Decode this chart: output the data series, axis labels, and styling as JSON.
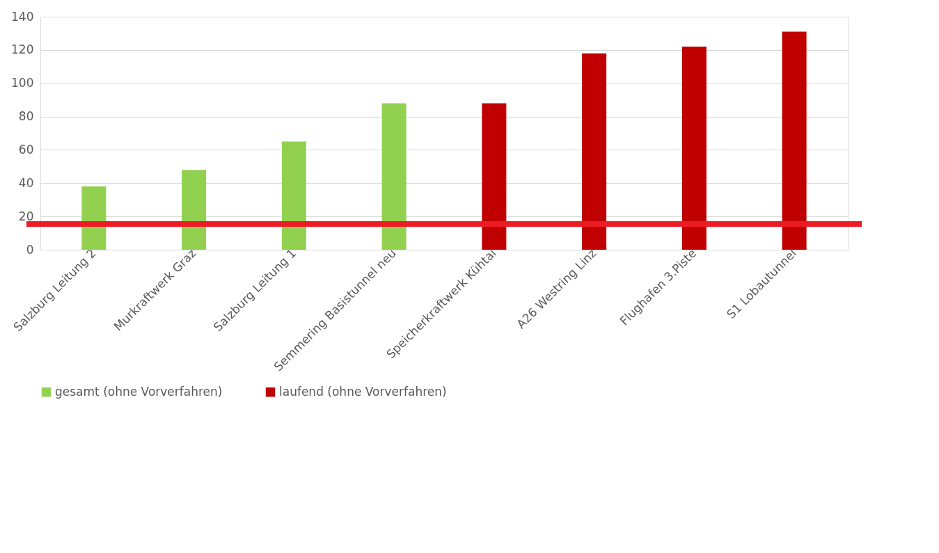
{
  "chart_data": {
    "type": "bar",
    "categories": [
      "Salzburg Leitung 2",
      "Murkraftwerk Graz",
      "Salzburg Leitung 1",
      "Semmering Basistunnel neu",
      "Speicherkraftwerk Kühtai",
      "A26 Westring Linz",
      "Flughafen 3.Piste",
      "S1 Lobautunnel"
    ],
    "series": [
      {
        "name": "gesamt (ohne Vorverfahren)",
        "color": "#92d050",
        "values": [
          38,
          48,
          65,
          88,
          null,
          null,
          null,
          null
        ]
      },
      {
        "name": "laufend (ohne Vorverfahren)",
        "color": "#c00000",
        "values": [
          null,
          null,
          null,
          null,
          88,
          118,
          122,
          131
        ]
      }
    ],
    "ylim": [
      0,
      140
    ],
    "yticks": [
      0,
      20,
      40,
      60,
      80,
      100,
      120,
      140
    ],
    "grid": "y",
    "legend": "bottom",
    "ref_lines": [
      {
        "axis": "y",
        "value": 15.5,
        "color": "#ed1c24"
      }
    ]
  }
}
